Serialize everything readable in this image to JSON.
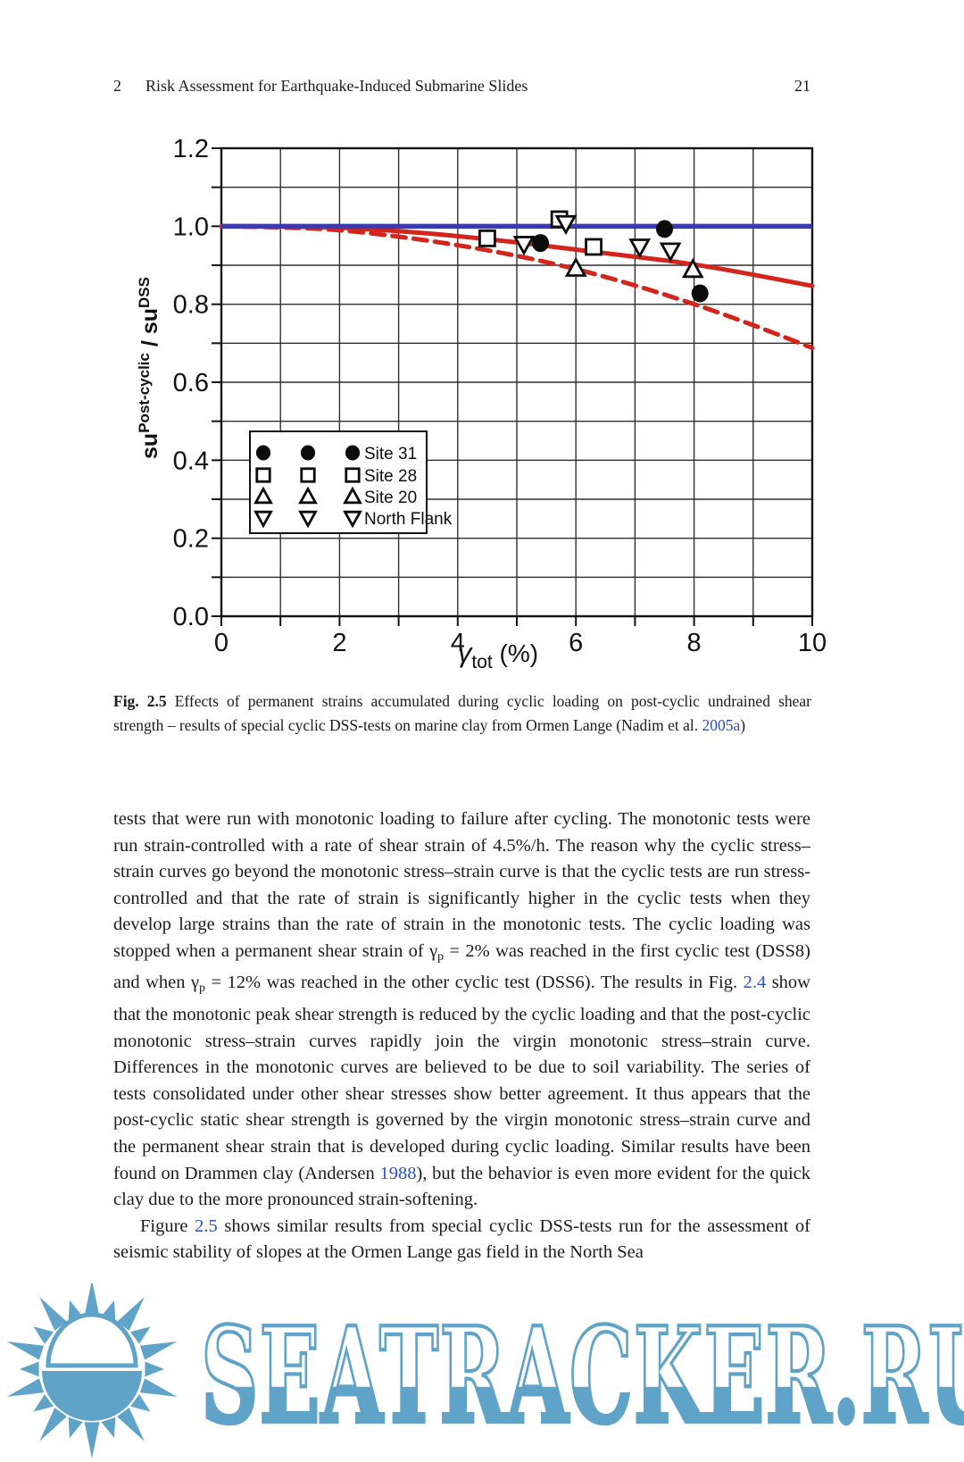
{
  "colors": {
    "link": "#2a50c8",
    "text": "#1b1b1b",
    "watermark": "#5fa3c8"
  },
  "header": {
    "chapter_number": "2",
    "title": "Risk Assessment for Earthquake-Induced Submarine Slides",
    "page_number": "21"
  },
  "caption": {
    "label": "Fig. 2.5",
    "body": "Effects of permanent strains accumulated during cyclic loading on post-cyclic undrained shear strength – results of special cyclic DSS-tests on marine clay from Ormen Lange (Nadim et al. ",
    "link": "2005a",
    "suffix": ")"
  },
  "body": {
    "paragraphs": [
      [
        {
          "s": "normal",
          "v": "tests that were run with monotonic loading to failure after cycling. The monotonic tests were run strain-controlled with a rate of shear strain of 4.5%/h. The reason why the cyclic stress–strain curves go beyond the monotonic stress–strain curve is that the cyclic tests are run stress-controlled and that the rate of strain is significantly higher in the cyclic tests when they develop large strains than the rate of strain in the monotonic tests. The cyclic loading was stopped when a permanent shear strain of γ"
        },
        {
          "s": "sub",
          "v": "p"
        },
        {
          "s": "normal",
          "v": " = 2% was reached in the first cyclic test (DSS8) and when γ"
        },
        {
          "s": "sub",
          "v": "p"
        },
        {
          "s": "normal",
          "v": " = 12% was reached in the other cyclic test (DSS6). The results in Fig. "
        },
        {
          "s": "link",
          "v": "2.4"
        },
        {
          "s": "normal",
          "v": " show that the monotonic peak shear strength is reduced by the cyclic loading and that the post-cyclic monotonic stress–strain curves rapidly join the virgin monotonic stress–strain curve. Differences in the monotonic curves are believed to be due to soil variability. The series of tests consolidated under other shear stresses show better agreement. It thus appears that the post-cyclic static shear strength is governed by the virgin monotonic stress–strain curve and the permanent shear strain that is developed during cyclic loading. Similar results have been found on Drammen clay (Andersen "
        },
        {
          "s": "link",
          "v": "1988"
        },
        {
          "s": "normal",
          "v": "), but the behavior is even more evident for the quick clay due to the more pronounced strain-softening."
        }
      ],
      [
        {
          "s": "normal",
          "v": "Figure "
        },
        {
          "s": "link",
          "v": "2.5"
        },
        {
          "s": "normal",
          "v": " shows similar results from special cyclic DSS-tests run for the assessment of seismic stability of slopes at the Ormen Lange gas field in the North Sea"
        }
      ]
    ]
  },
  "watermark": {
    "text": "SEATRACKER.RU",
    "icon": "sun-icon"
  },
  "chart_data": {
    "type": "scatter",
    "title": "",
    "xlabel": {
      "symbol": "γ",
      "sub": "tot",
      "suffix": " (%)"
    },
    "ylabel": {
      "pre": "s",
      "pre2": "u",
      "sup": "Post-cyclic",
      "mid": " / s",
      "mid2": "u",
      "sup2": "DSS"
    },
    "xlim": [
      0,
      10
    ],
    "ylim": [
      0,
      1.2
    ],
    "x_grid_step": 1,
    "y_grid_step": 0.1,
    "x_tick_labels": [
      "0",
      "2",
      "4",
      "6",
      "8",
      "10"
    ],
    "x_tick_values": [
      0,
      2,
      4,
      6,
      8,
      10
    ],
    "y_tick_labels": [
      "0.0",
      "0.2",
      "0.4",
      "0.6",
      "0.8",
      "1.0",
      "1.2"
    ],
    "y_tick_values": [
      0,
      0.2,
      0.4,
      0.6,
      0.8,
      1.0,
      1.2
    ],
    "grid": true,
    "reference_line": {
      "y": 1.0,
      "color": "#3a3ab8"
    },
    "curve_color": "#d3251c",
    "colors": {
      "grid": "#2f2f2f",
      "axis": "#111111",
      "marker": "#0c0c0c"
    },
    "curves": [
      {
        "name": "solid-trend",
        "style": "solid",
        "x": [
          0,
          1,
          2,
          3,
          4,
          5,
          6,
          7,
          8,
          9,
          10
        ],
        "y": [
          1.0,
          1.0,
          0.997,
          0.988,
          0.975,
          0.959,
          0.94,
          0.922,
          0.903,
          0.876,
          0.847
        ]
      },
      {
        "name": "dashed-trend",
        "style": "dashed",
        "x": [
          0,
          1,
          2,
          3,
          4,
          5,
          6,
          7,
          8,
          9,
          10
        ],
        "y": [
          1.0,
          0.998,
          0.991,
          0.974,
          0.952,
          0.925,
          0.891,
          0.849,
          0.801,
          0.747,
          0.688
        ]
      }
    ],
    "series": [
      {
        "name": "Site 31",
        "marker": "filled-circle",
        "points": [
          [
            5.4,
            0.957
          ],
          [
            7.5,
            0.993
          ],
          [
            8.1,
            0.828
          ]
        ]
      },
      {
        "name": "Site 28",
        "marker": "open-square",
        "points": [
          [
            4.5,
            0.969
          ],
          [
            5.72,
            1.018
          ],
          [
            6.3,
            0.947
          ]
        ]
      },
      {
        "name": "Site 20",
        "marker": "open-triangle-up",
        "points": [
          [
            6.0,
            0.892
          ],
          [
            7.98,
            0.889
          ]
        ]
      },
      {
        "name": "North Flank",
        "marker": "open-triangle-down",
        "points": [
          [
            5.12,
            0.954
          ],
          [
            5.83,
            1.007
          ],
          [
            7.08,
            0.947
          ],
          [
            7.6,
            0.937
          ]
        ]
      }
    ],
    "legend": {
      "position": "center-left",
      "marker_columns": 3,
      "entries": [
        "Site 31",
        "Site 28",
        "Site 20",
        "North Flank"
      ]
    }
  }
}
